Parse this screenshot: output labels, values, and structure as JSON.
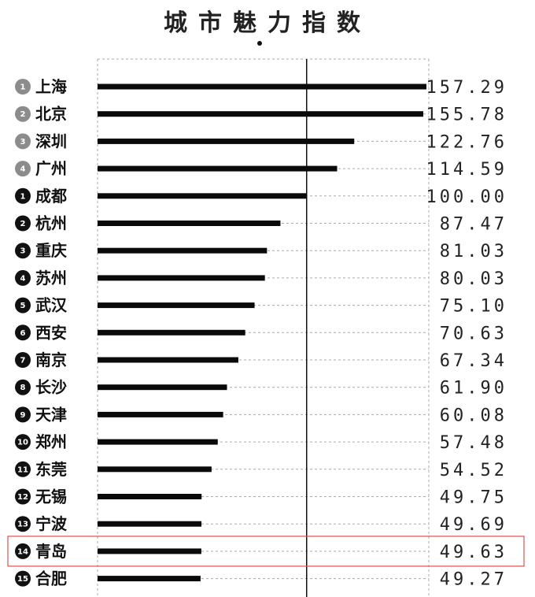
{
  "title": "城市魅力指数",
  "colors": {
    "bar": "#0a0a0a",
    "grid": "#aaaaaa",
    "rank_gray": "#8c8c8c",
    "rank_black": "#111111",
    "highlight": "#d9534f"
  },
  "highlight_category": "青岛",
  "chart_data": {
    "type": "bar",
    "orientation": "horizontal",
    "title": "城市魅力指数",
    "categories": [
      "上海",
      "北京",
      "深圳",
      "广州",
      "成都",
      "杭州",
      "重庆",
      "苏州",
      "武汉",
      "西安",
      "南京",
      "长沙",
      "天津",
      "郑州",
      "东莞",
      "无锡",
      "宁波",
      "青岛",
      "合肥"
    ],
    "ranks": [
      "1",
      "2",
      "3",
      "4",
      "1",
      "2",
      "3",
      "4",
      "5",
      "6",
      "7",
      "8",
      "9",
      "10",
      "11",
      "12",
      "13",
      "14",
      "15"
    ],
    "rank_styles": [
      "gray",
      "gray",
      "gray",
      "gray",
      "black",
      "black",
      "black",
      "black",
      "black",
      "black",
      "black",
      "black",
      "black",
      "black",
      "black",
      "black",
      "black",
      "black",
      "black"
    ],
    "values": [
      157.29,
      155.78,
      122.76,
      114.59,
      100.0,
      87.47,
      81.03,
      80.03,
      75.1,
      70.63,
      67.34,
      61.9,
      60.08,
      57.48,
      54.52,
      49.75,
      49.69,
      49.63,
      49.27
    ],
    "value_labels": [
      "157.29",
      "155.78",
      "122.76",
      "114.59",
      "100.00",
      "87.47",
      "81.03",
      "80.03",
      "75.10",
      "70.63",
      "67.34",
      "61.90",
      "60.08",
      "57.48",
      "54.52",
      "49.75",
      "49.69",
      "49.63",
      "49.27"
    ],
    "reference_line": 100,
    "xlim": [
      0,
      157.29
    ],
    "grid": "dashed"
  }
}
